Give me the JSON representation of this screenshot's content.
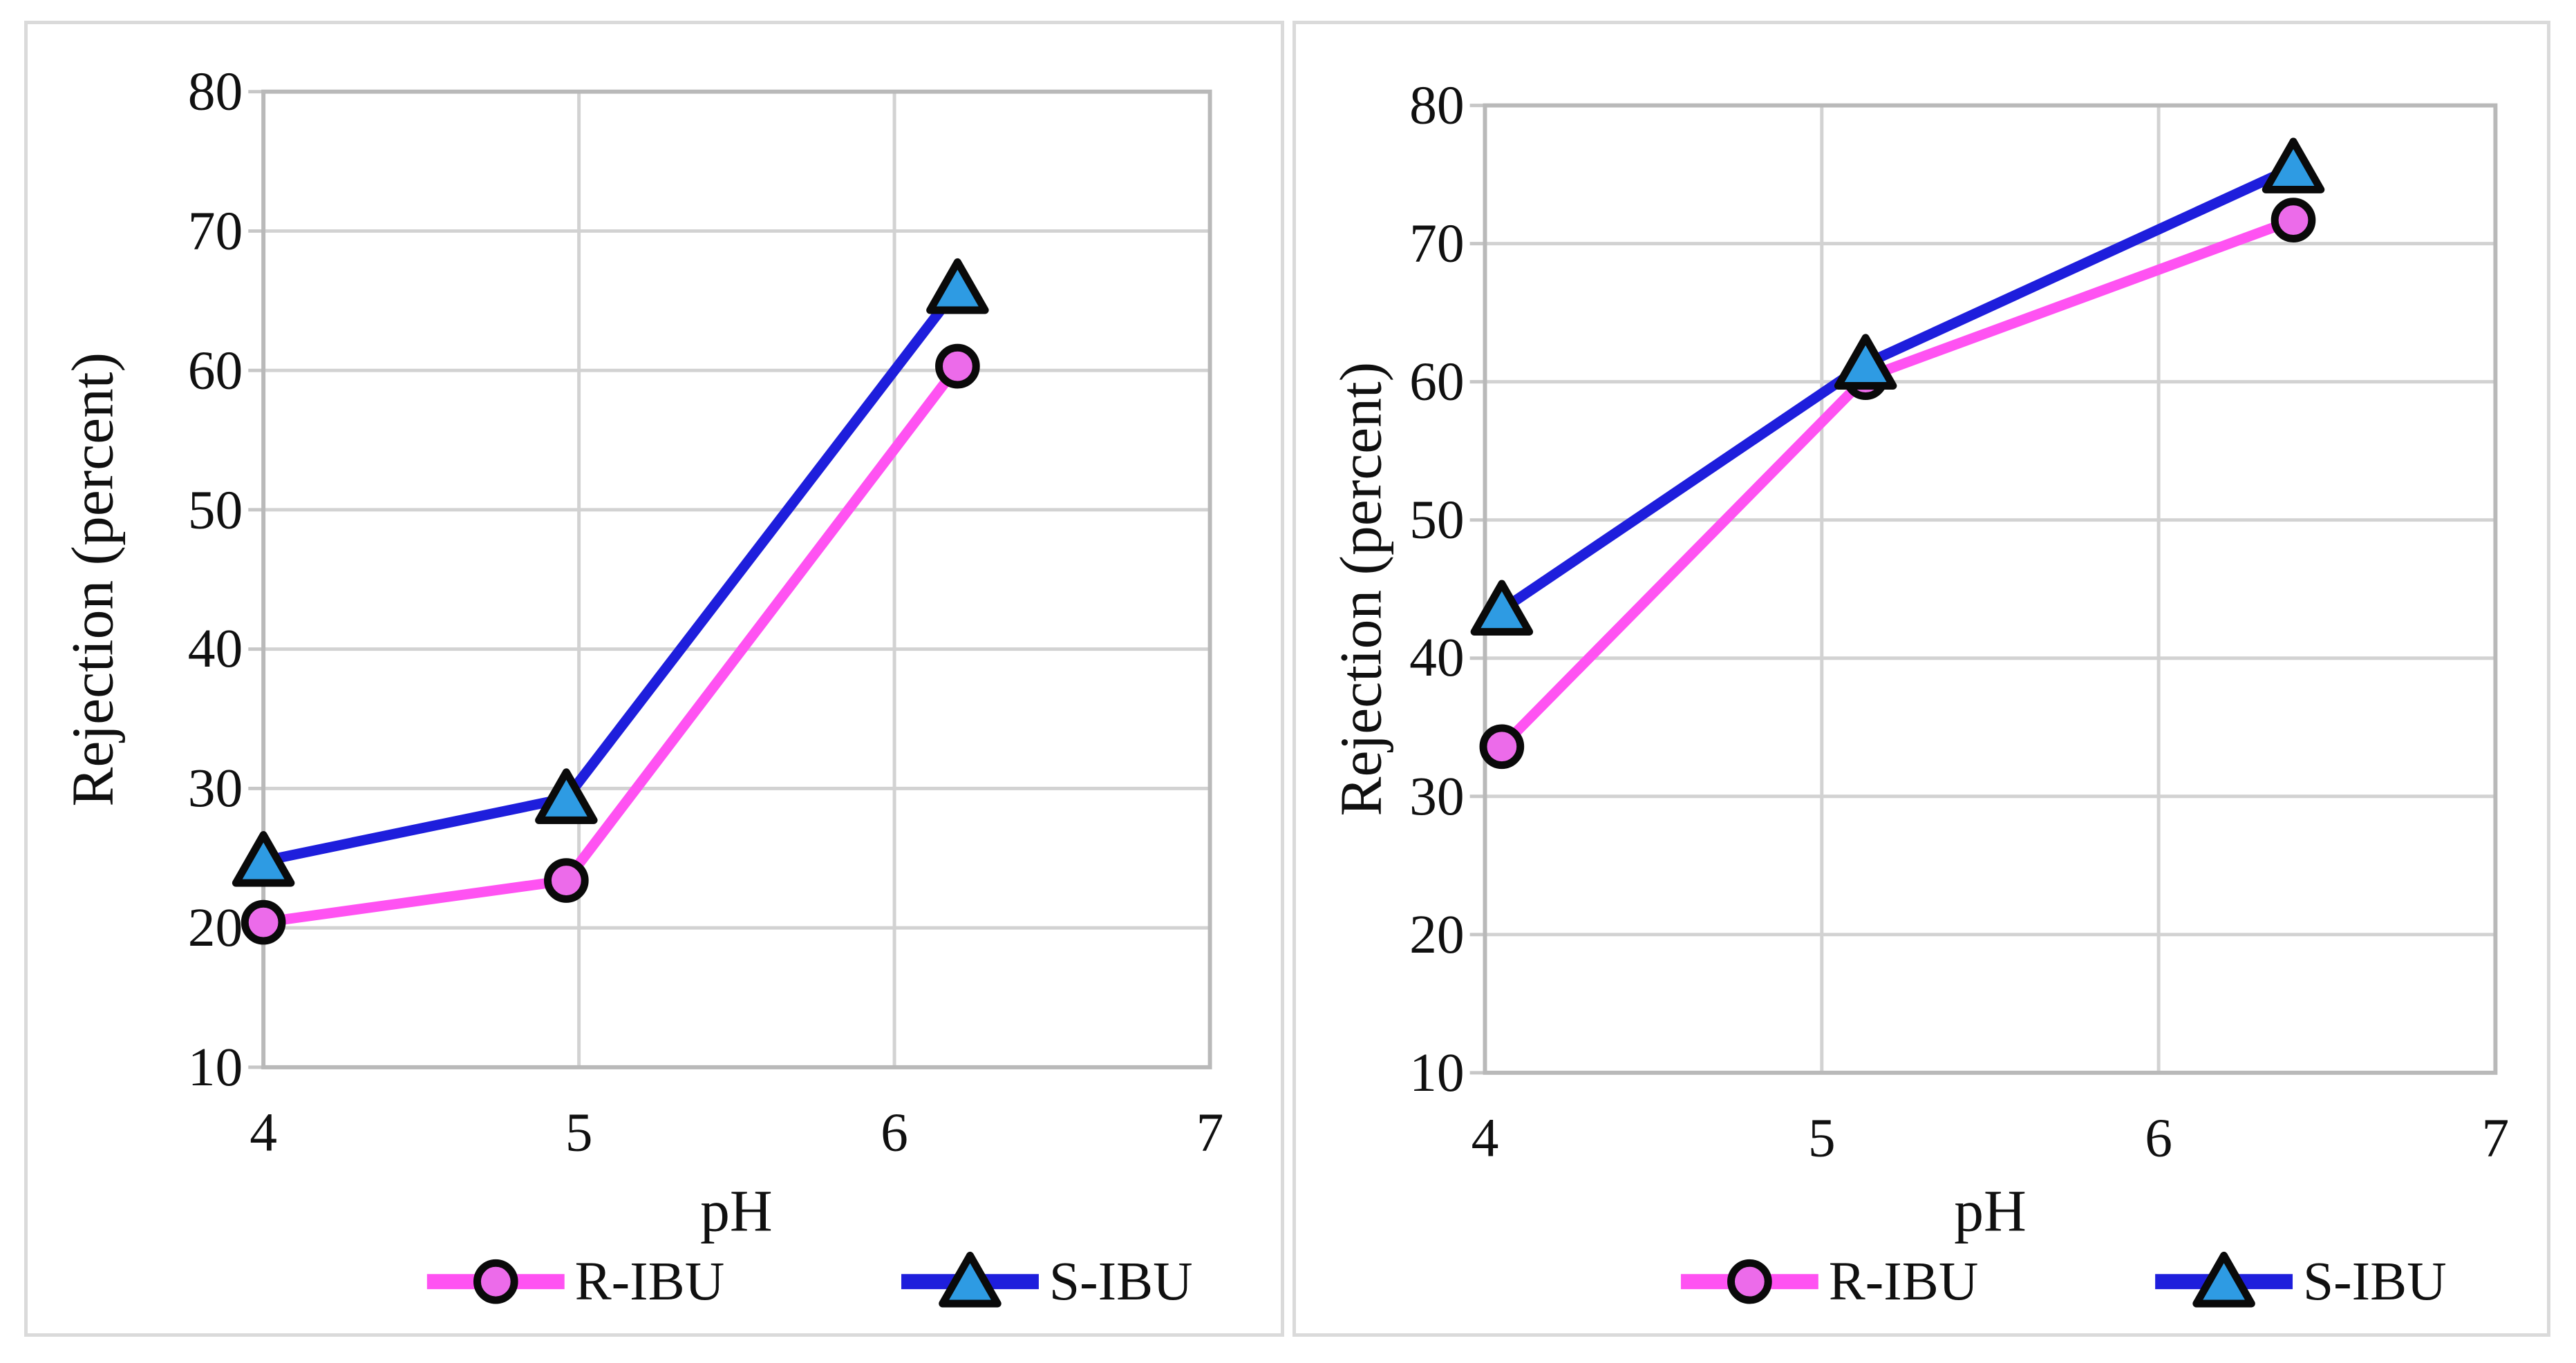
{
  "figure": {
    "description": "Two side-by-side line charts of enantiomer rejection versus pH",
    "panel_count": 2
  },
  "palette": {
    "grid": "#d2d2d2",
    "axis": "#b9b9b9",
    "tick_mark": "#c7c7c7",
    "panel_border": "#dadada",
    "text": "#101010",
    "r_ibu_line": "#ff52f2",
    "r_ibu_marker_fill": "#ec6bea",
    "s_ibu_line": "#1e1edc",
    "s_ibu_marker_fill": "#2e9be3",
    "marker_stroke": "#0a0a0a"
  },
  "chart_data": [
    {
      "type": "line",
      "panel": "left",
      "title": "",
      "xlabel": "pH",
      "ylabel": "Rejection (percent)",
      "xlim": [
        4,
        7
      ],
      "ylim": [
        10,
        80
      ],
      "x_ticks": [
        "4",
        "5",
        "6",
        "7"
      ],
      "y_ticks": [
        "80",
        "70",
        "60",
        "50",
        "40",
        "30",
        "20",
        "10"
      ],
      "grid": true,
      "legend_position": "bottom",
      "series": [
        {
          "name": "R-IBU",
          "marker": "circle",
          "line_color": "#ff52f2",
          "marker_fill": "#ec6bea",
          "marker_stroke": "#0a0a0a",
          "x": [
            4.0,
            4.96,
            6.2
          ],
          "y": [
            20.4,
            23.4,
            60.3
          ]
        },
        {
          "name": "S-IBU",
          "marker": "triangle",
          "line_color": "#1e1edc",
          "marker_fill": "#2e9be3",
          "marker_stroke": "#0a0a0a",
          "x": [
            4.0,
            4.96,
            6.2
          ],
          "y": [
            24.8,
            29.3,
            65.9
          ]
        }
      ]
    },
    {
      "type": "line",
      "panel": "right",
      "title": "",
      "xlabel": "pH",
      "ylabel": "Rejection (percent)",
      "xlim": [
        4,
        7
      ],
      "ylim": [
        10,
        80
      ],
      "x_ticks": [
        "4",
        "5",
        "6",
        "7"
      ],
      "y_ticks": [
        "80",
        "70",
        "60",
        "50",
        "40",
        "30",
        "20",
        "10"
      ],
      "grid": true,
      "legend_position": "bottom",
      "series": [
        {
          "name": "R-IBU",
          "marker": "circle",
          "line_color": "#ff52f2",
          "marker_fill": "#ec6bea",
          "marker_stroke": "#0a0a0a",
          "x": [
            4.05,
            5.13,
            6.4
          ],
          "y": [
            33.6,
            60.3,
            71.7
          ]
        },
        {
          "name": "S-IBU",
          "marker": "triangle",
          "line_color": "#1e1edc",
          "marker_fill": "#2e9be3",
          "marker_stroke": "#0a0a0a",
          "x": [
            4.05,
            5.13,
            6.4
          ],
          "y": [
            43.5,
            61.3,
            75.5
          ]
        }
      ]
    }
  ]
}
